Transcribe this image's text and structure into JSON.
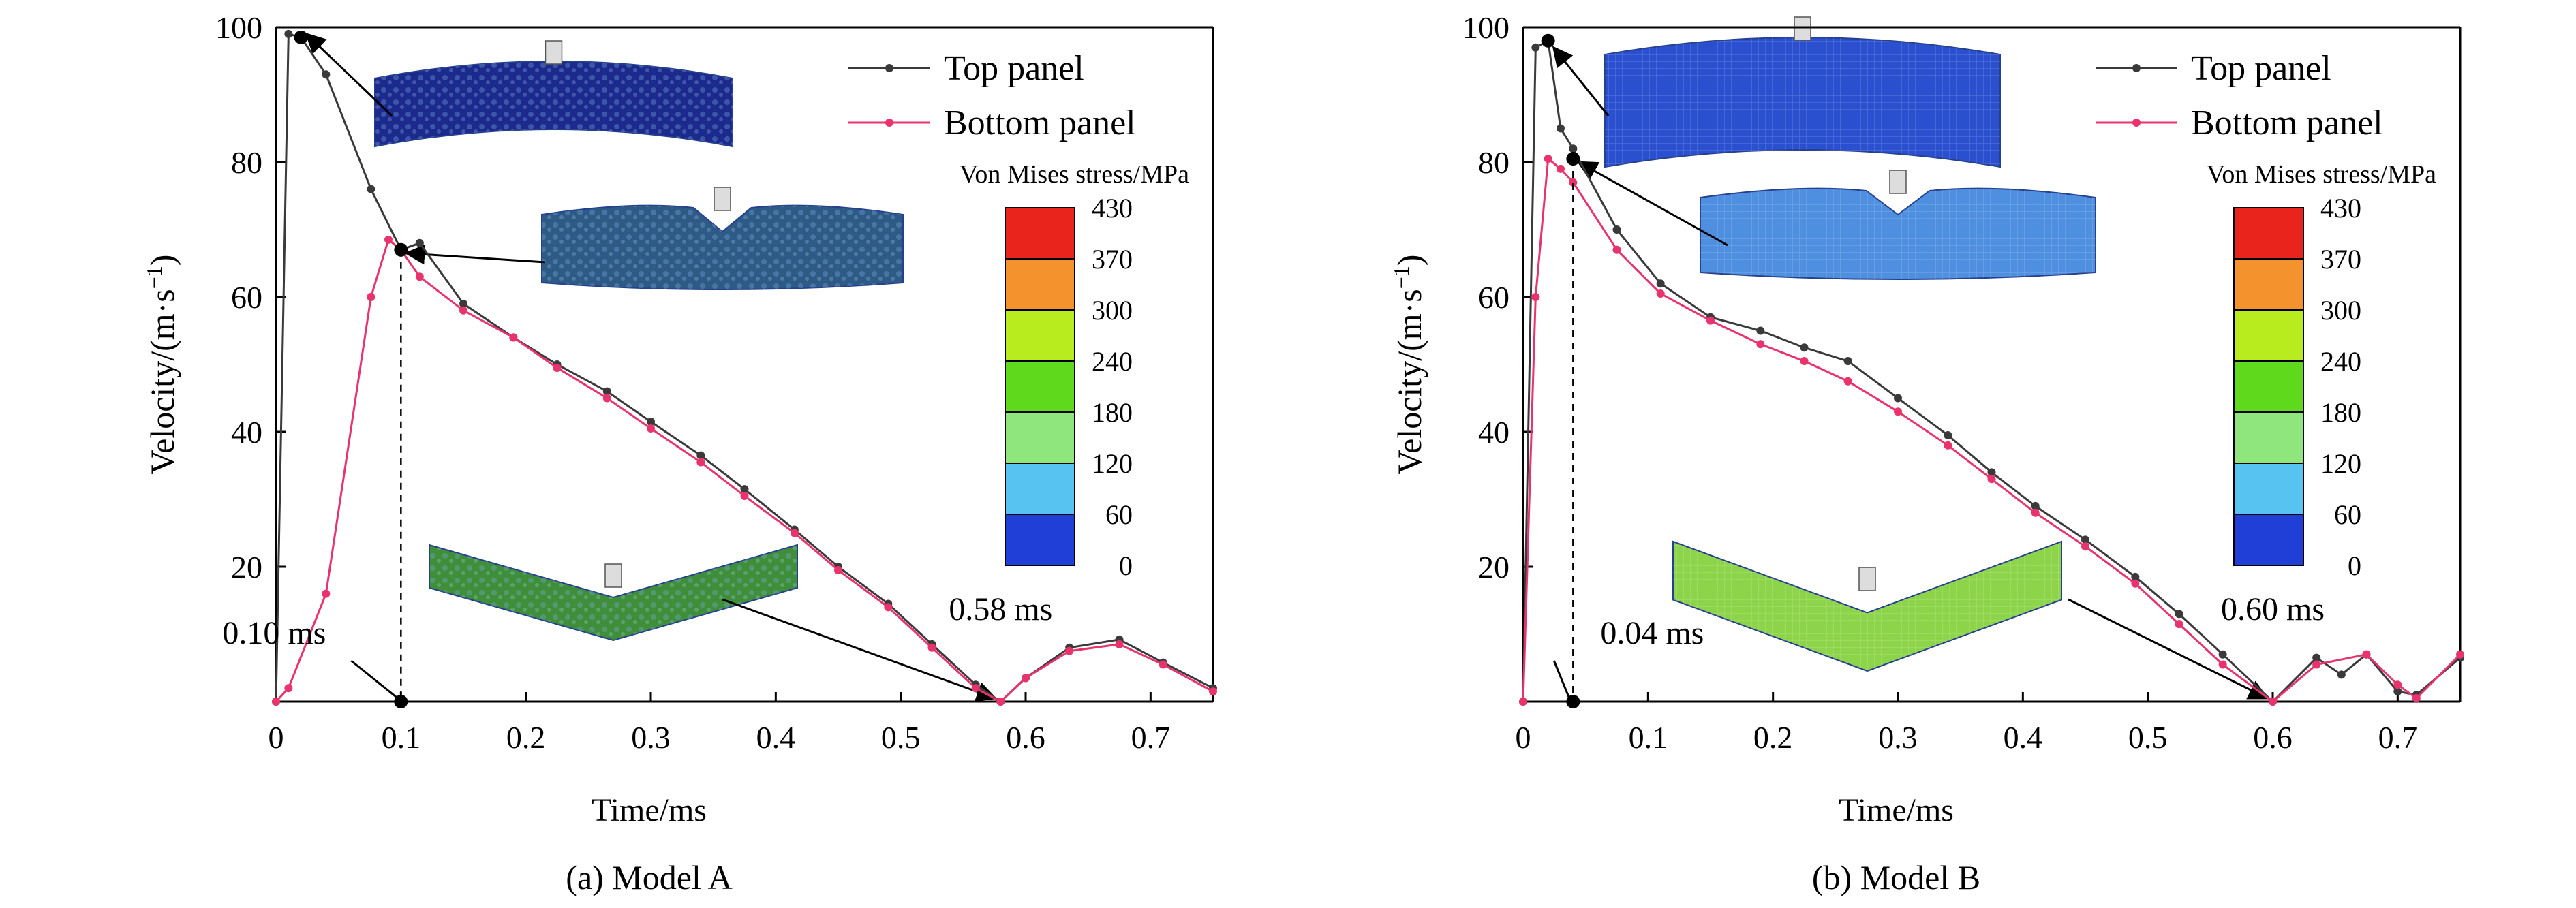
{
  "chart_data": [
    {
      "type": "line",
      "caption": "(a) Model A",
      "xlabel": "Time/ms",
      "ylabel": "Velocity/(m·s",
      "ylabel_sup": "−1",
      "ylabel_close": ")",
      "xlim": [
        0,
        0.75
      ],
      "ylim": [
        0,
        100
      ],
      "xticks": [
        0,
        0.1,
        0.2,
        0.3,
        0.4,
        0.5,
        0.6,
        0.7
      ],
      "xtick_labels": [
        "0",
        "0.1",
        "0.2",
        "0.3",
        "0.4",
        "0.5",
        "0.6",
        "0.7"
      ],
      "yticks": [
        20,
        40,
        60,
        80,
        100
      ],
      "ytick_labels": [
        "20",
        "40",
        "60",
        "80",
        "100"
      ],
      "legend_position": "top-right",
      "series": [
        {
          "name": "Top panel",
          "color": "#3a3a3a",
          "x": [
            0,
            0.01,
            0.02,
            0.04,
            0.076,
            0.1,
            0.115,
            0.15,
            0.19,
            0.225,
            0.265,
            0.3,
            0.34,
            0.375,
            0.415,
            0.45,
            0.49,
            0.525,
            0.56,
            0.58,
            0.6,
            0.635,
            0.675,
            0.71,
            0.75
          ],
          "values": [
            0,
            99,
            98.5,
            93,
            76,
            67,
            68,
            59,
            54,
            50,
            46,
            41.5,
            36.5,
            31.5,
            25.5,
            20,
            14.5,
            8.5,
            2.5,
            0,
            3.5,
            8,
            9.2,
            5.8,
            2
          ]
        },
        {
          "name": "Bottom panel",
          "color": "#e8336d",
          "x": [
            0,
            0.01,
            0.04,
            0.076,
            0.09,
            0.1,
            0.115,
            0.15,
            0.19,
            0.225,
            0.265,
            0.3,
            0.34,
            0.375,
            0.415,
            0.45,
            0.49,
            0.525,
            0.56,
            0.58,
            0.6,
            0.635,
            0.675,
            0.71,
            0.75
          ],
          "values": [
            0,
            2,
            16,
            60,
            68.5,
            67,
            63,
            58,
            54,
            49.5,
            45,
            40.5,
            35.5,
            30.5,
            25,
            19.5,
            14,
            8,
            2,
            0,
            3.5,
            7.5,
            8.5,
            5.5,
            1.5
          ]
        }
      ],
      "markers": [
        {
          "label": "0.10 ms",
          "x": 0.1,
          "y": 0
        },
        {
          "label": "0.58 ms",
          "x": 0.58,
          "y": 0
        }
      ],
      "colorbar": {
        "title": "Von Mises stress/MPa",
        "labels": [
          "430",
          "370",
          "300",
          "240",
          "180",
          "120",
          "60",
          "0"
        ],
        "colors": [
          "#e8241c",
          "#f4922e",
          "#b8ec1e",
          "#5fd91c",
          "#8ee67c",
          "#57c3f0",
          "#1f3fd6"
        ]
      },
      "insets": [
        {
          "shape": "flat-arch",
          "fill": "#1b2a8c"
        },
        {
          "shape": "dent",
          "fill": "#2e5a86"
        },
        {
          "shape": "deep-v",
          "fill": "#3f8f3a"
        }
      ]
    },
    {
      "type": "line",
      "caption": "(b) Model B",
      "xlabel": "Time/ms",
      "ylabel": "Velocity/(m·s",
      "ylabel_sup": "−1",
      "ylabel_close": ")",
      "xlim": [
        0,
        0.75
      ],
      "ylim": [
        0,
        100
      ],
      "xticks": [
        0,
        0.1,
        0.2,
        0.3,
        0.4,
        0.5,
        0.6,
        0.7
      ],
      "xtick_labels": [
        "0",
        "0.1",
        "0.2",
        "0.3",
        "0.4",
        "0.5",
        "0.6",
        "0.7"
      ],
      "yticks": [
        20,
        40,
        60,
        80,
        100
      ],
      "ytick_labels": [
        "20",
        "40",
        "60",
        "80",
        "100"
      ],
      "legend_position": "top-right",
      "series": [
        {
          "name": "Top panel",
          "color": "#3a3a3a",
          "x": [
            0,
            0.01,
            0.02,
            0.03,
            0.04,
            0.075,
            0.11,
            0.15,
            0.19,
            0.225,
            0.26,
            0.3,
            0.34,
            0.375,
            0.41,
            0.45,
            0.49,
            0.525,
            0.56,
            0.6,
            0.635,
            0.655,
            0.675,
            0.7,
            0.715,
            0.75
          ],
          "values": [
            0,
            97,
            98,
            85,
            82,
            70,
            62,
            57,
            55,
            52.5,
            50.5,
            45,
            39.5,
            34,
            29,
            24,
            18.5,
            13,
            7,
            0,
            6.5,
            4,
            7,
            1.5,
            1,
            6.5
          ]
        },
        {
          "name": "Bottom panel",
          "color": "#e8336d",
          "x": [
            0,
            0.01,
            0.02,
            0.03,
            0.04,
            0.075,
            0.11,
            0.15,
            0.19,
            0.225,
            0.26,
            0.3,
            0.34,
            0.375,
            0.41,
            0.45,
            0.49,
            0.525,
            0.56,
            0.6,
            0.635,
            0.675,
            0.7,
            0.715,
            0.75
          ],
          "values": [
            0,
            60,
            80.5,
            79,
            77,
            67,
            60.5,
            56.5,
            53,
            50.5,
            47.5,
            43,
            38,
            33,
            28,
            23,
            17.5,
            11.5,
            5.5,
            0,
            5.5,
            7,
            2.5,
            0.5,
            7
          ]
        }
      ],
      "markers": [
        {
          "label": "0.04 ms",
          "x": 0.04,
          "y": 0
        },
        {
          "label": "0.60 ms",
          "x": 0.6,
          "y": 0
        }
      ],
      "colorbar": {
        "title": "Von Mises stress/MPa",
        "labels": [
          "430",
          "370",
          "300",
          "240",
          "180",
          "120",
          "60",
          "0"
        ],
        "colors": [
          "#e8241c",
          "#f4922e",
          "#b8ec1e",
          "#5fd91c",
          "#8ee67c",
          "#57c3f0",
          "#1f3fd6"
        ]
      },
      "insets": [
        {
          "shape": "flat-arch",
          "fill": "#2a4fcf"
        },
        {
          "shape": "dent",
          "fill": "#4f8fe0"
        },
        {
          "shape": "deep-v",
          "fill": "#8ed44a"
        }
      ]
    }
  ]
}
